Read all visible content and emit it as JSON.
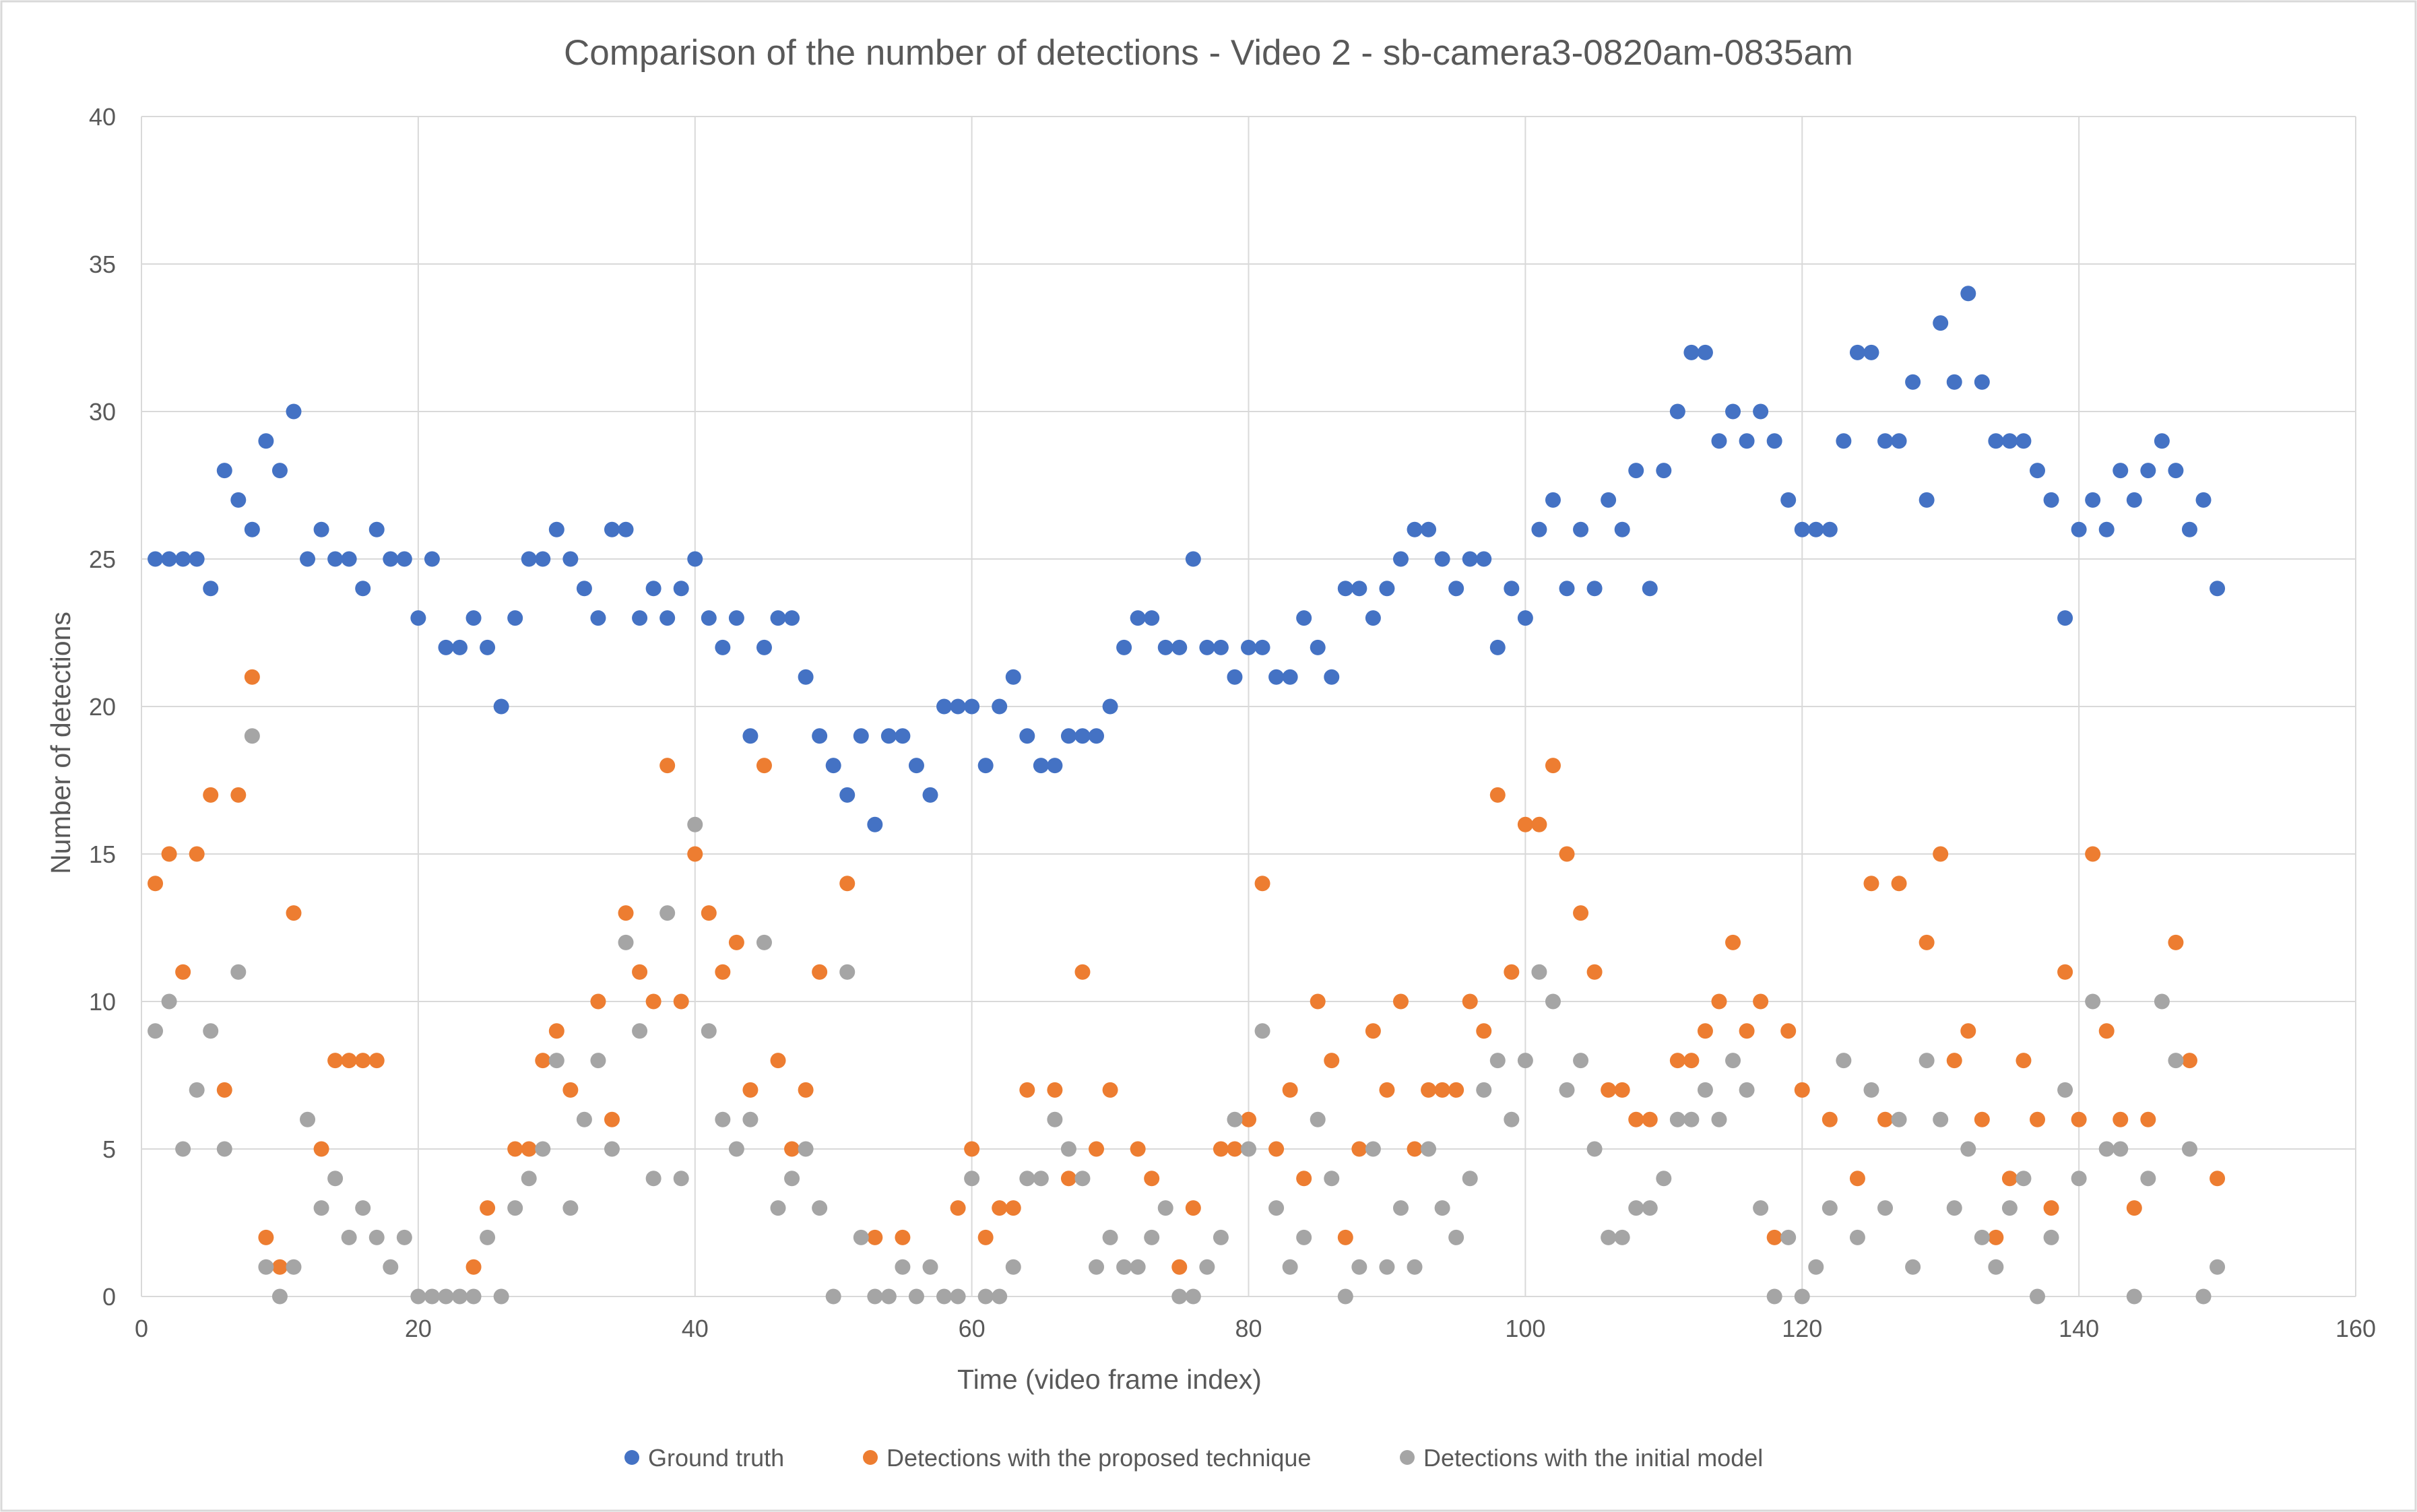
{
  "chart_data": {
    "type": "scatter",
    "title": "Comparison of the number of detections - Video 2 - sb-camera3-0820am-0835am",
    "xlabel": "Time (video frame index)",
    "ylabel": "Number of detections",
    "xlim": [
      0,
      160
    ],
    "ylim": [
      0,
      40
    ],
    "xticks": [
      0,
      20,
      40,
      60,
      80,
      100,
      120,
      140,
      160
    ],
    "yticks": [
      0,
      5,
      10,
      15,
      20,
      25,
      30,
      35,
      40
    ],
    "grid": true,
    "legend_position": "bottom",
    "series": [
      {
        "name": "Ground truth",
        "color": "#4472c4",
        "y": [
          25,
          25,
          25,
          25,
          24,
          28,
          27,
          26,
          29,
          28,
          30,
          25,
          26,
          25,
          25,
          24,
          26,
          25,
          25,
          23,
          25,
          22,
          22,
          23,
          22,
          20,
          23,
          25,
          25,
          26,
          25,
          24,
          23,
          26,
          26,
          23,
          24,
          23,
          24,
          25,
          23,
          22,
          23,
          19,
          22,
          23,
          23,
          21,
          19,
          18,
          17,
          19,
          16,
          19,
          19,
          18,
          17,
          20,
          20,
          20,
          18,
          20,
          21,
          19,
          18,
          18,
          19,
          19,
          19,
          20,
          22,
          23,
          23,
          22,
          22,
          25,
          22,
          22,
          21,
          22,
          22,
          21,
          21,
          23,
          22,
          21,
          24,
          24,
          23,
          24,
          25,
          26,
          26,
          25,
          24,
          25,
          25,
          22,
          24,
          23,
          26,
          27,
          24,
          26,
          24,
          27,
          26,
          28,
          24,
          28,
          30,
          32,
          32,
          29,
          30,
          29,
          30,
          29,
          27,
          26,
          26,
          26,
          29,
          32,
          32,
          29,
          29,
          31,
          27,
          33,
          31,
          34,
          31,
          29,
          29,
          29,
          28,
          27,
          23,
          26,
          27,
          26,
          28,
          27,
          28,
          29,
          28,
          26,
          27,
          24
        ]
      },
      {
        "name": "Detections with the proposed technique",
        "color": "#ed7d31",
        "y": [
          14,
          15,
          11,
          15,
          17,
          7,
          17,
          21,
          2,
          1,
          13,
          null,
          5,
          8,
          8,
          8,
          8,
          null,
          null,
          null,
          null,
          null,
          null,
          1,
          3,
          null,
          5,
          5,
          8,
          9,
          7,
          null,
          10,
          6,
          13,
          11,
          10,
          18,
          10,
          15,
          13,
          11,
          12,
          7,
          18,
          8,
          5,
          7,
          11,
          null,
          14,
          null,
          2,
          null,
          2,
          null,
          null,
          null,
          3,
          5,
          2,
          3,
          3,
          7,
          null,
          7,
          4,
          11,
          5,
          7,
          null,
          5,
          4,
          null,
          1,
          3,
          null,
          5,
          5,
          6,
          14,
          5,
          7,
          4,
          10,
          8,
          2,
          5,
          9,
          7,
          10,
          5,
          7,
          7,
          7,
          10,
          9,
          17,
          11,
          16,
          16,
          18,
          15,
          13,
          11,
          7,
          7,
          6,
          6,
          null,
          8,
          8,
          9,
          10,
          12,
          9,
          10,
          2,
          9,
          7,
          null,
          6,
          null,
          4,
          14,
          6,
          14,
          null,
          12,
          15,
          8,
          9,
          6,
          2,
          4,
          8,
          6,
          3,
          11,
          6,
          15,
          9,
          6,
          3,
          6,
          null,
          12,
          8,
          null,
          4
        ]
      },
      {
        "name": "Detections with the initial model",
        "color": "#a5a5a5",
        "y": [
          9,
          10,
          5,
          7,
          9,
          5,
          11,
          19,
          1,
          0,
          1,
          6,
          3,
          4,
          2,
          3,
          2,
          1,
          2,
          0,
          0,
          0,
          0,
          0,
          2,
          0,
          3,
          4,
          5,
          8,
          3,
          6,
          8,
          5,
          12,
          9,
          4,
          13,
          4,
          16,
          9,
          6,
          5,
          6,
          12,
          3,
          4,
          5,
          3,
          0,
          11,
          2,
          0,
          0,
          1,
          0,
          1,
          0,
          0,
          4,
          0,
          0,
          1,
          4,
          4,
          6,
          5,
          4,
          1,
          2,
          1,
          1,
          2,
          3,
          0,
          0,
          1,
          2,
          6,
          5,
          9,
          3,
          1,
          2,
          6,
          4,
          0,
          1,
          5,
          1,
          3,
          1,
          5,
          3,
          2,
          4,
          7,
          8,
          6,
          8,
          11,
          10,
          7,
          8,
          5,
          2,
          2,
          3,
          3,
          4,
          6,
          6,
          7,
          6,
          8,
          7,
          3,
          0,
          2,
          0,
          1,
          3,
          8,
          2,
          7,
          3,
          6,
          1,
          8,
          6,
          3,
          5,
          2,
          1,
          3,
          4,
          0,
          2,
          7,
          4,
          10,
          5,
          5,
          0,
          4,
          10,
          8,
          5,
          0,
          1
        ]
      }
    ]
  }
}
